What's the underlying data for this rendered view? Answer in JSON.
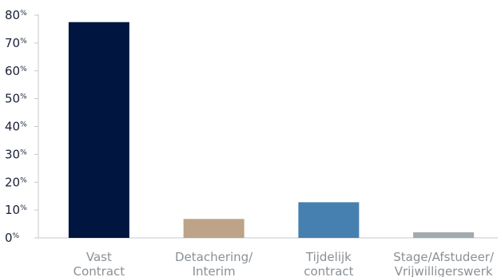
{
  "chart_data": {
    "type": "bar",
    "categories": [
      [
        "Vast",
        "Contract"
      ],
      [
        "Detachering/",
        "Interim"
      ],
      [
        "Tijdelijk",
        "contract"
      ],
      [
        "Stage/Afstudeer/",
        "Vrijwilligerswerk"
      ]
    ],
    "values": [
      77.5,
      6.8,
      12.8,
      2.0
    ],
    "colors": [
      "#001640",
      "#bda387",
      "#4680b1",
      "#a1aaae"
    ],
    "ylim": [
      0,
      80
    ],
    "yticks": [
      0,
      10,
      20,
      30,
      40,
      50,
      60,
      70,
      80
    ],
    "ytick_suffix": "%",
    "axis_color": "#c4c8cc",
    "tick_color": "#1a2238",
    "label_color": "#8a9096",
    "grid": false,
    "legend": "none",
    "title": "",
    "xlabel": "",
    "ylabel": ""
  }
}
